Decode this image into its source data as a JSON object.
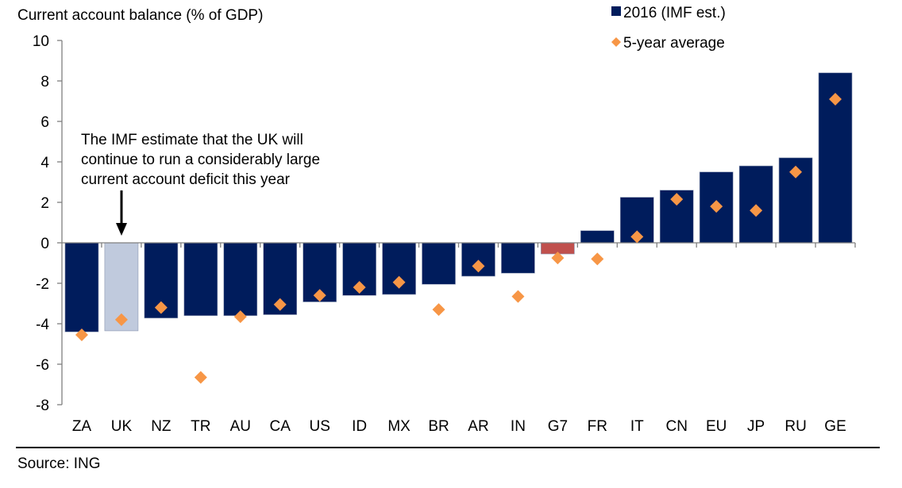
{
  "chart_data": {
    "type": "bar",
    "title": "Current account balance (% of GDP)",
    "xlabel": "",
    "ylabel": "Current account balance (% of GDP)",
    "ylim": [
      -8,
      10
    ],
    "yticks": [
      10,
      8,
      6,
      4,
      2,
      0,
      -2,
      -4,
      -6,
      -8
    ],
    "ytick_labels": [
      "10",
      "8",
      "6",
      "4",
      "2",
      "0",
      "-2",
      "-4",
      "-6",
      "-8"
    ],
    "grid": false,
    "legend_position": "top-right",
    "categories": [
      "ZA",
      "UK",
      "NZ",
      "TR",
      "AU",
      "CA",
      "US",
      "ID",
      "MX",
      "BR",
      "AR",
      "IN",
      "G7",
      "FR",
      "IT",
      "CN",
      "EU",
      "JP",
      "RU",
      "GE"
    ],
    "series": [
      {
        "name": "2016 (IMF est.)",
        "kind": "bar",
        "color": "#001C5C",
        "values": [
          -4.4,
          -4.35,
          -3.72,
          -3.6,
          -3.6,
          -3.55,
          -2.92,
          -2.6,
          -2.55,
          -2.05,
          -1.65,
          -1.5,
          -0.55,
          0.6,
          2.25,
          2.6,
          3.5,
          3.8,
          4.2,
          8.4
        ],
        "highlight_colors": {
          "UK": "#C0CADD",
          "G7": "#C0504D"
        }
      },
      {
        "name": "5-year average",
        "kind": "marker-diamond",
        "color": "#F79646",
        "values": [
          -4.55,
          -3.8,
          -3.2,
          -6.65,
          -3.65,
          -3.05,
          -2.6,
          -2.2,
          -1.95,
          -3.3,
          -1.15,
          -2.65,
          -0.75,
          -0.8,
          0.3,
          2.15,
          1.8,
          1.6,
          3.5,
          7.1
        ]
      }
    ],
    "annotation": {
      "lines": [
        "The IMF estimate that the UK will",
        "continue to run a considerably large",
        "current account deficit this year"
      ],
      "points_to": "UK"
    },
    "source": "Source: ING"
  }
}
